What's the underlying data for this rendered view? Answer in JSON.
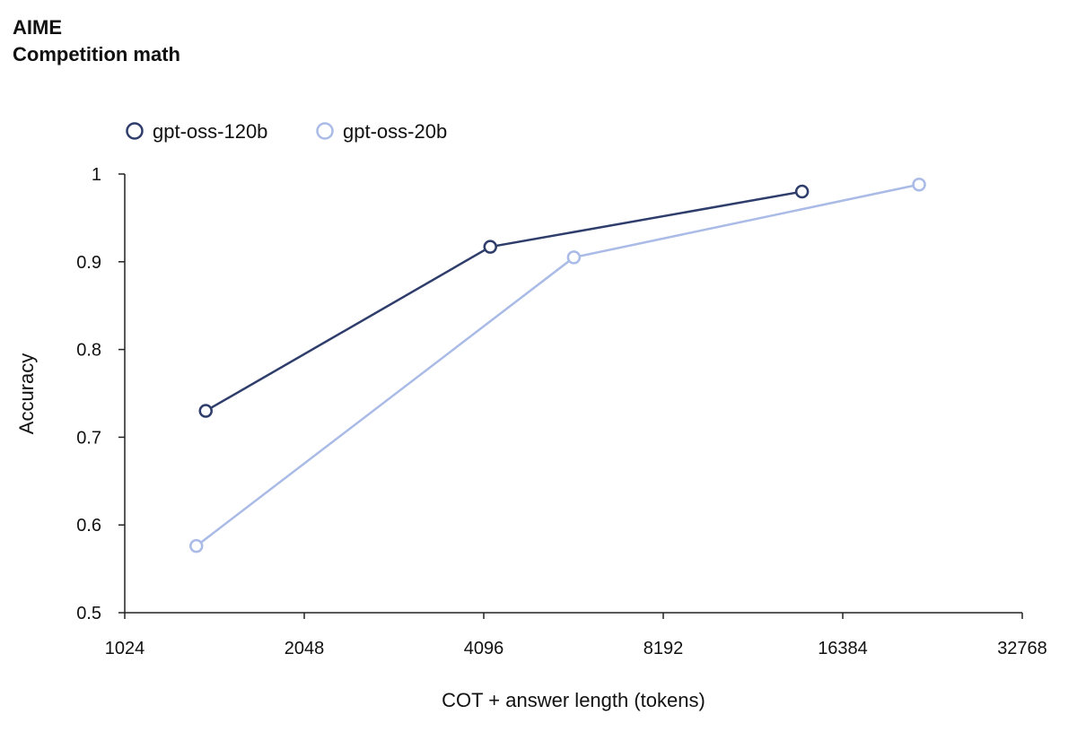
{
  "header": {
    "title": "AIME",
    "subtitle": "Competition math"
  },
  "chart_data": {
    "type": "line",
    "title": "AIME",
    "subtitle": "Competition math",
    "xlabel": "COT + answer length (tokens)",
    "ylabel": "Accuracy",
    "x_scale": "log2",
    "xlim": [
      1024,
      32768
    ],
    "ylim": [
      0.5,
      1.0
    ],
    "x_ticks": [
      "1024",
      "2048",
      "4096",
      "8192",
      "16384",
      "32768"
    ],
    "y_ticks": [
      "0.5",
      "0.6",
      "0.7",
      "0.8",
      "0.9",
      "1"
    ],
    "grid": false,
    "legend_position": "top-left",
    "series": [
      {
        "name": "gpt-oss-120b",
        "color": "#2e3d6b",
        "points": [
          {
            "x": 1400,
            "y": 0.73
          },
          {
            "x": 4200,
            "y": 0.917
          },
          {
            "x": 14000,
            "y": 0.98
          }
        ]
      },
      {
        "name": "gpt-oss-20b",
        "color": "#a9bbe6",
        "points": [
          {
            "x": 1350,
            "y": 0.576
          },
          {
            "x": 5800,
            "y": 0.905
          },
          {
            "x": 22000,
            "y": 0.988
          }
        ]
      }
    ]
  }
}
